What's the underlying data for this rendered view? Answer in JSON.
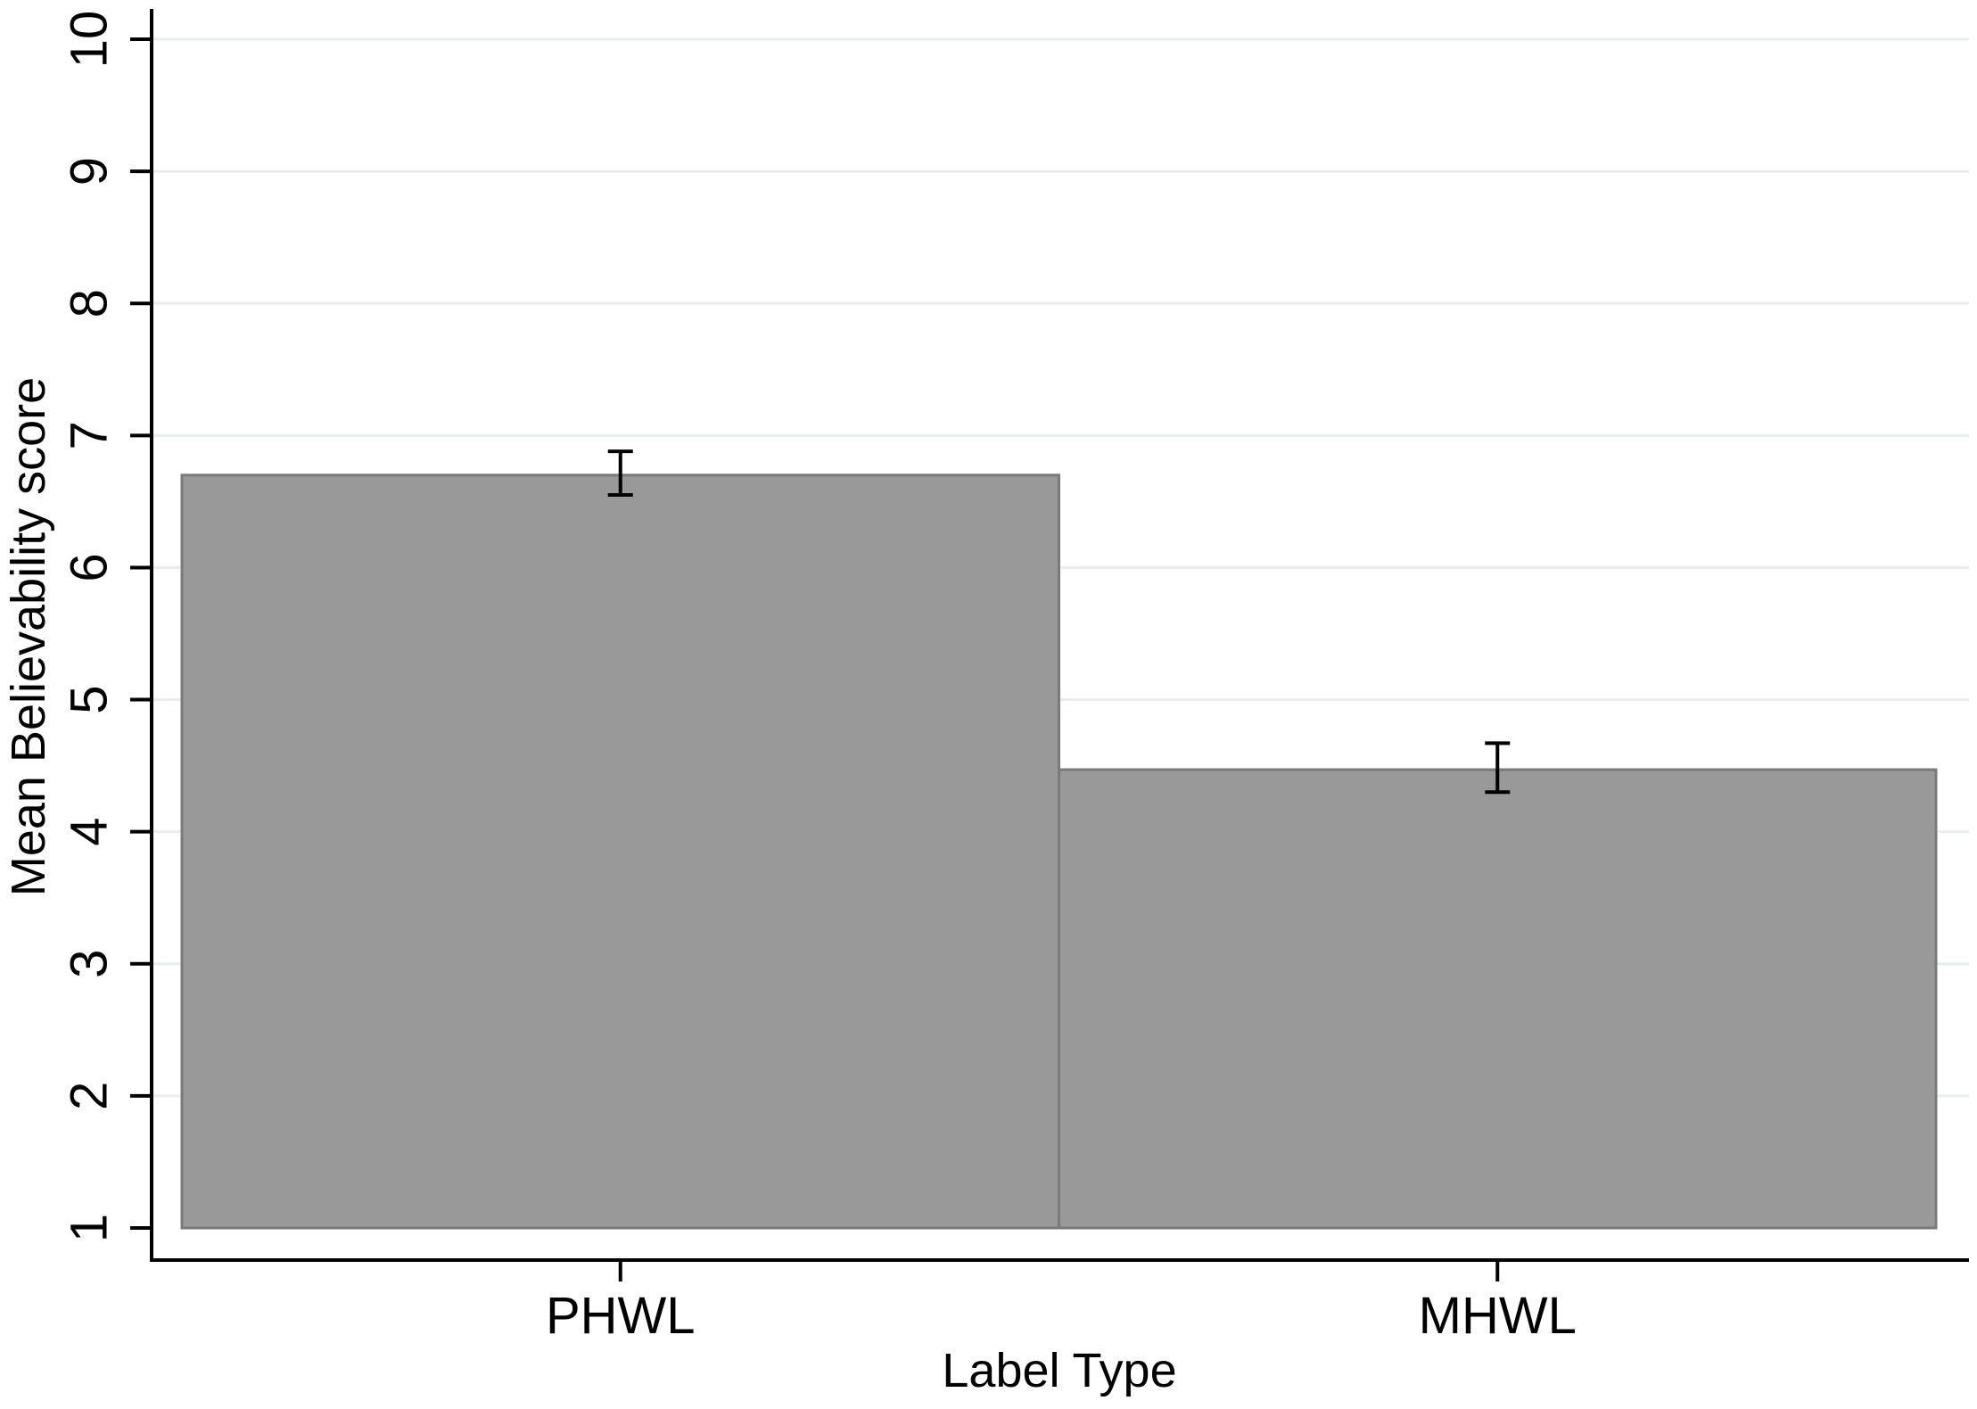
{
  "chart_data": {
    "type": "bar",
    "title": "",
    "xlabel": "Label Type",
    "ylabel": "Mean Believability score",
    "categories": [
      "PHWL",
      "MHWL"
    ],
    "values": [
      6.7,
      4.47
    ],
    "error_bars": [
      {
        "low": 6.55,
        "high": 6.88
      },
      {
        "low": 4.3,
        "high": 4.67
      }
    ],
    "ylim": [
      1,
      10
    ],
    "y_ticks": [
      "1",
      "2",
      "3",
      "4",
      "5",
      "6",
      "7",
      "8",
      "9",
      "10"
    ],
    "grid": true,
    "colors": {
      "bar": "#999999",
      "bar_edge": "#7a7a7a",
      "grid": "#e6eef0",
      "axis": "#000000"
    }
  }
}
